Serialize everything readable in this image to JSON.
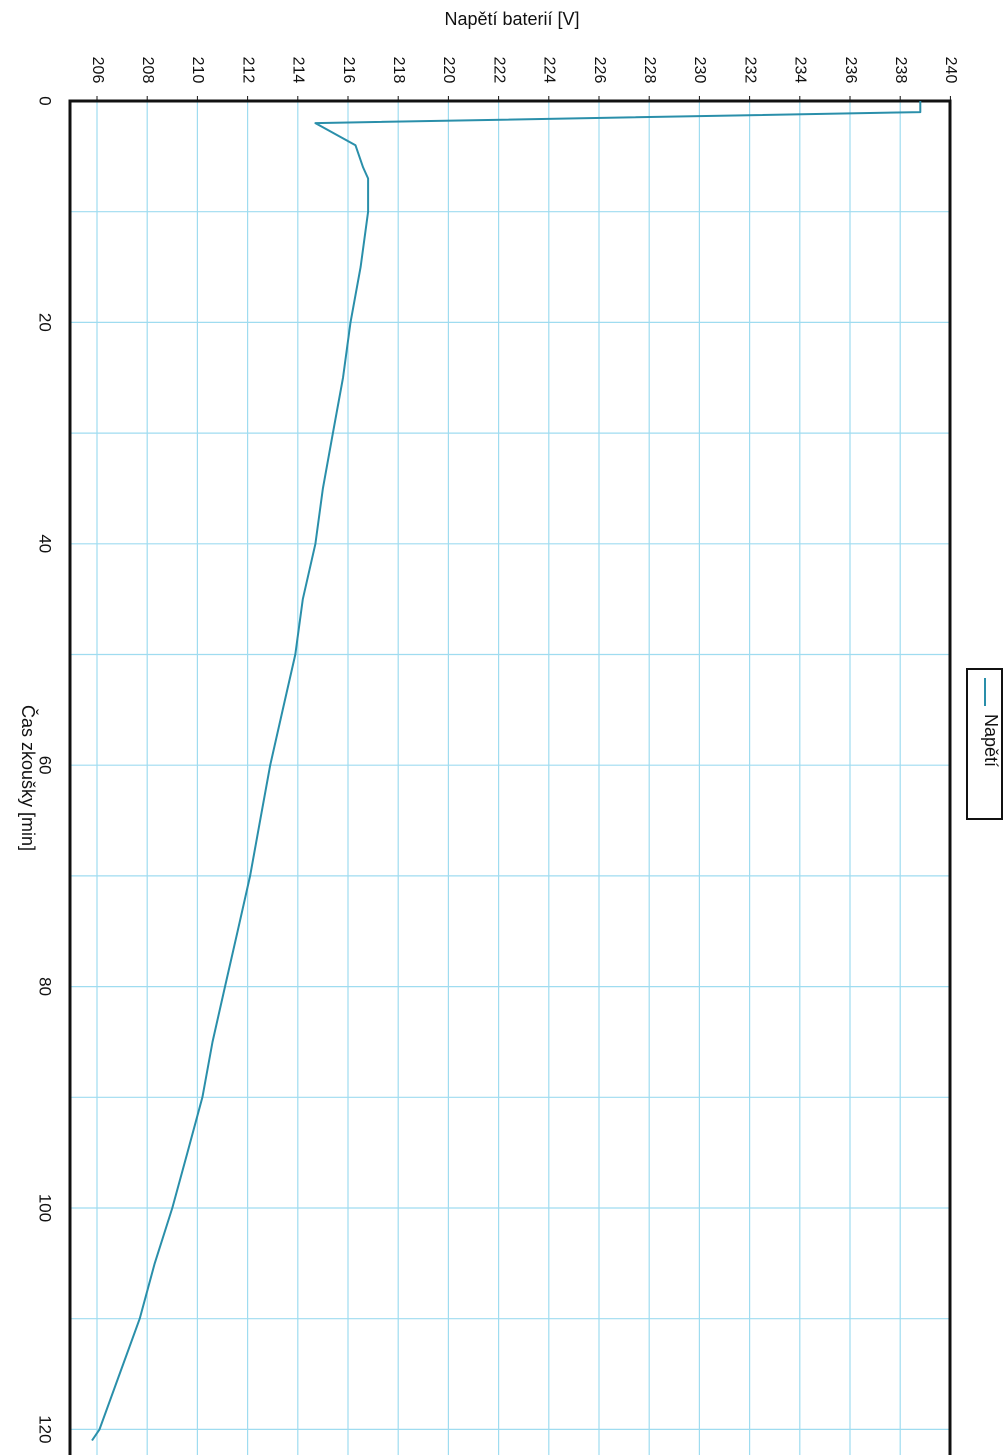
{
  "chart_data": {
    "type": "line",
    "orientation": "rotated",
    "title": "",
    "ylabel": "Napětí baterií [V]",
    "xlabel": "Čas zkoušky [min]",
    "ylim": [
      205,
      240
    ],
    "xlim": [
      0,
      121
    ],
    "y_ticks": [
      206,
      208,
      210,
      212,
      214,
      216,
      218,
      220,
      222,
      224,
      226,
      228,
      230,
      232,
      234,
      236,
      238,
      240
    ],
    "x_ticks": [
      0,
      20,
      40,
      60,
      80,
      100,
      120
    ],
    "x_minor_step": 10,
    "grid": true,
    "legend_position": "right",
    "colors": {
      "line": "#2a8faa",
      "grid": "#9fdcf0",
      "frame": "#111111"
    },
    "series": [
      {
        "name": "Napětí",
        "x": [
          0,
          1,
          2,
          4,
          6,
          7,
          10,
          15,
          20,
          25,
          30,
          35,
          40,
          45,
          50,
          55,
          60,
          65,
          70,
          75,
          80,
          85,
          90,
          95,
          100,
          105,
          110,
          115,
          120,
          121
        ],
        "y": [
          238.8,
          238.8,
          214.7,
          216.3,
          216.6,
          216.8,
          216.8,
          216.5,
          216.1,
          215.8,
          215.4,
          215.0,
          214.7,
          214.2,
          213.9,
          213.4,
          212.9,
          212.5,
          212.1,
          211.6,
          211.1,
          210.6,
          210.2,
          209.6,
          209.0,
          208.3,
          207.7,
          206.9,
          206.1,
          205.8
        ]
      }
    ]
  }
}
